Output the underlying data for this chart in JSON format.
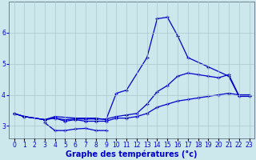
{
  "xlabel": "Graphe des températures (°c)",
  "background_color": "#cce8ec",
  "grid_color": "#aac8cc",
  "line_color": "#0000cc",
  "line1_x": [
    0,
    1,
    3,
    4,
    6,
    7,
    8,
    9,
    10,
    11,
    13,
    14,
    15,
    16,
    17,
    19,
    21,
    22,
    23
  ],
  "line1_y": [
    3.4,
    3.3,
    3.2,
    3.3,
    3.25,
    3.25,
    3.25,
    3.2,
    4.05,
    4.15,
    5.2,
    6.45,
    6.5,
    5.9,
    5.2,
    4.9,
    4.6,
    3.95,
    3.95
  ],
  "line2_x": [
    0,
    1,
    3,
    4,
    5,
    6,
    7,
    8,
    9,
    10,
    11,
    12,
    13,
    14,
    15,
    16,
    17,
    18,
    19,
    20,
    21,
    22,
    23
  ],
  "line2_y": [
    3.4,
    3.3,
    3.2,
    3.25,
    3.15,
    3.2,
    3.15,
    3.15,
    3.15,
    3.25,
    3.25,
    3.3,
    3.4,
    3.6,
    3.7,
    3.8,
    3.85,
    3.9,
    3.95,
    4.0,
    4.05,
    4.0,
    4.0
  ],
  "line3_x": [
    0,
    1,
    3,
    4,
    5,
    6,
    7,
    8,
    9,
    10,
    11,
    12,
    13,
    14,
    15,
    16,
    17,
    18,
    19,
    20,
    21,
    22,
    23
  ],
  "line3_y": [
    3.4,
    3.3,
    3.2,
    3.25,
    3.2,
    3.22,
    3.22,
    3.22,
    3.22,
    3.3,
    3.35,
    3.4,
    3.7,
    4.1,
    4.3,
    4.6,
    4.7,
    4.65,
    4.6,
    4.55,
    4.65,
    3.97,
    3.97
  ],
  "line4_x": [
    3,
    4,
    5,
    6,
    7,
    8,
    9
  ],
  "line4_y": [
    3.1,
    2.85,
    2.85,
    2.9,
    2.92,
    2.85,
    2.85
  ],
  "ylim": [
    2.6,
    7.0
  ],
  "yticks": [
    3,
    4,
    5,
    6
  ],
  "xtick_labels": [
    "0",
    "1",
    "2",
    "3",
    "4",
    "5",
    "6",
    "7",
    "8",
    "9",
    "10",
    "11",
    "12",
    "13",
    "14",
    "15",
    "16",
    "17",
    "18",
    "19",
    "20",
    "21",
    "22",
    "23"
  ],
  "xlabel_fontsize": 7.0,
  "xlabel_fontweight": "bold",
  "tick_fontsize": 5.5
}
